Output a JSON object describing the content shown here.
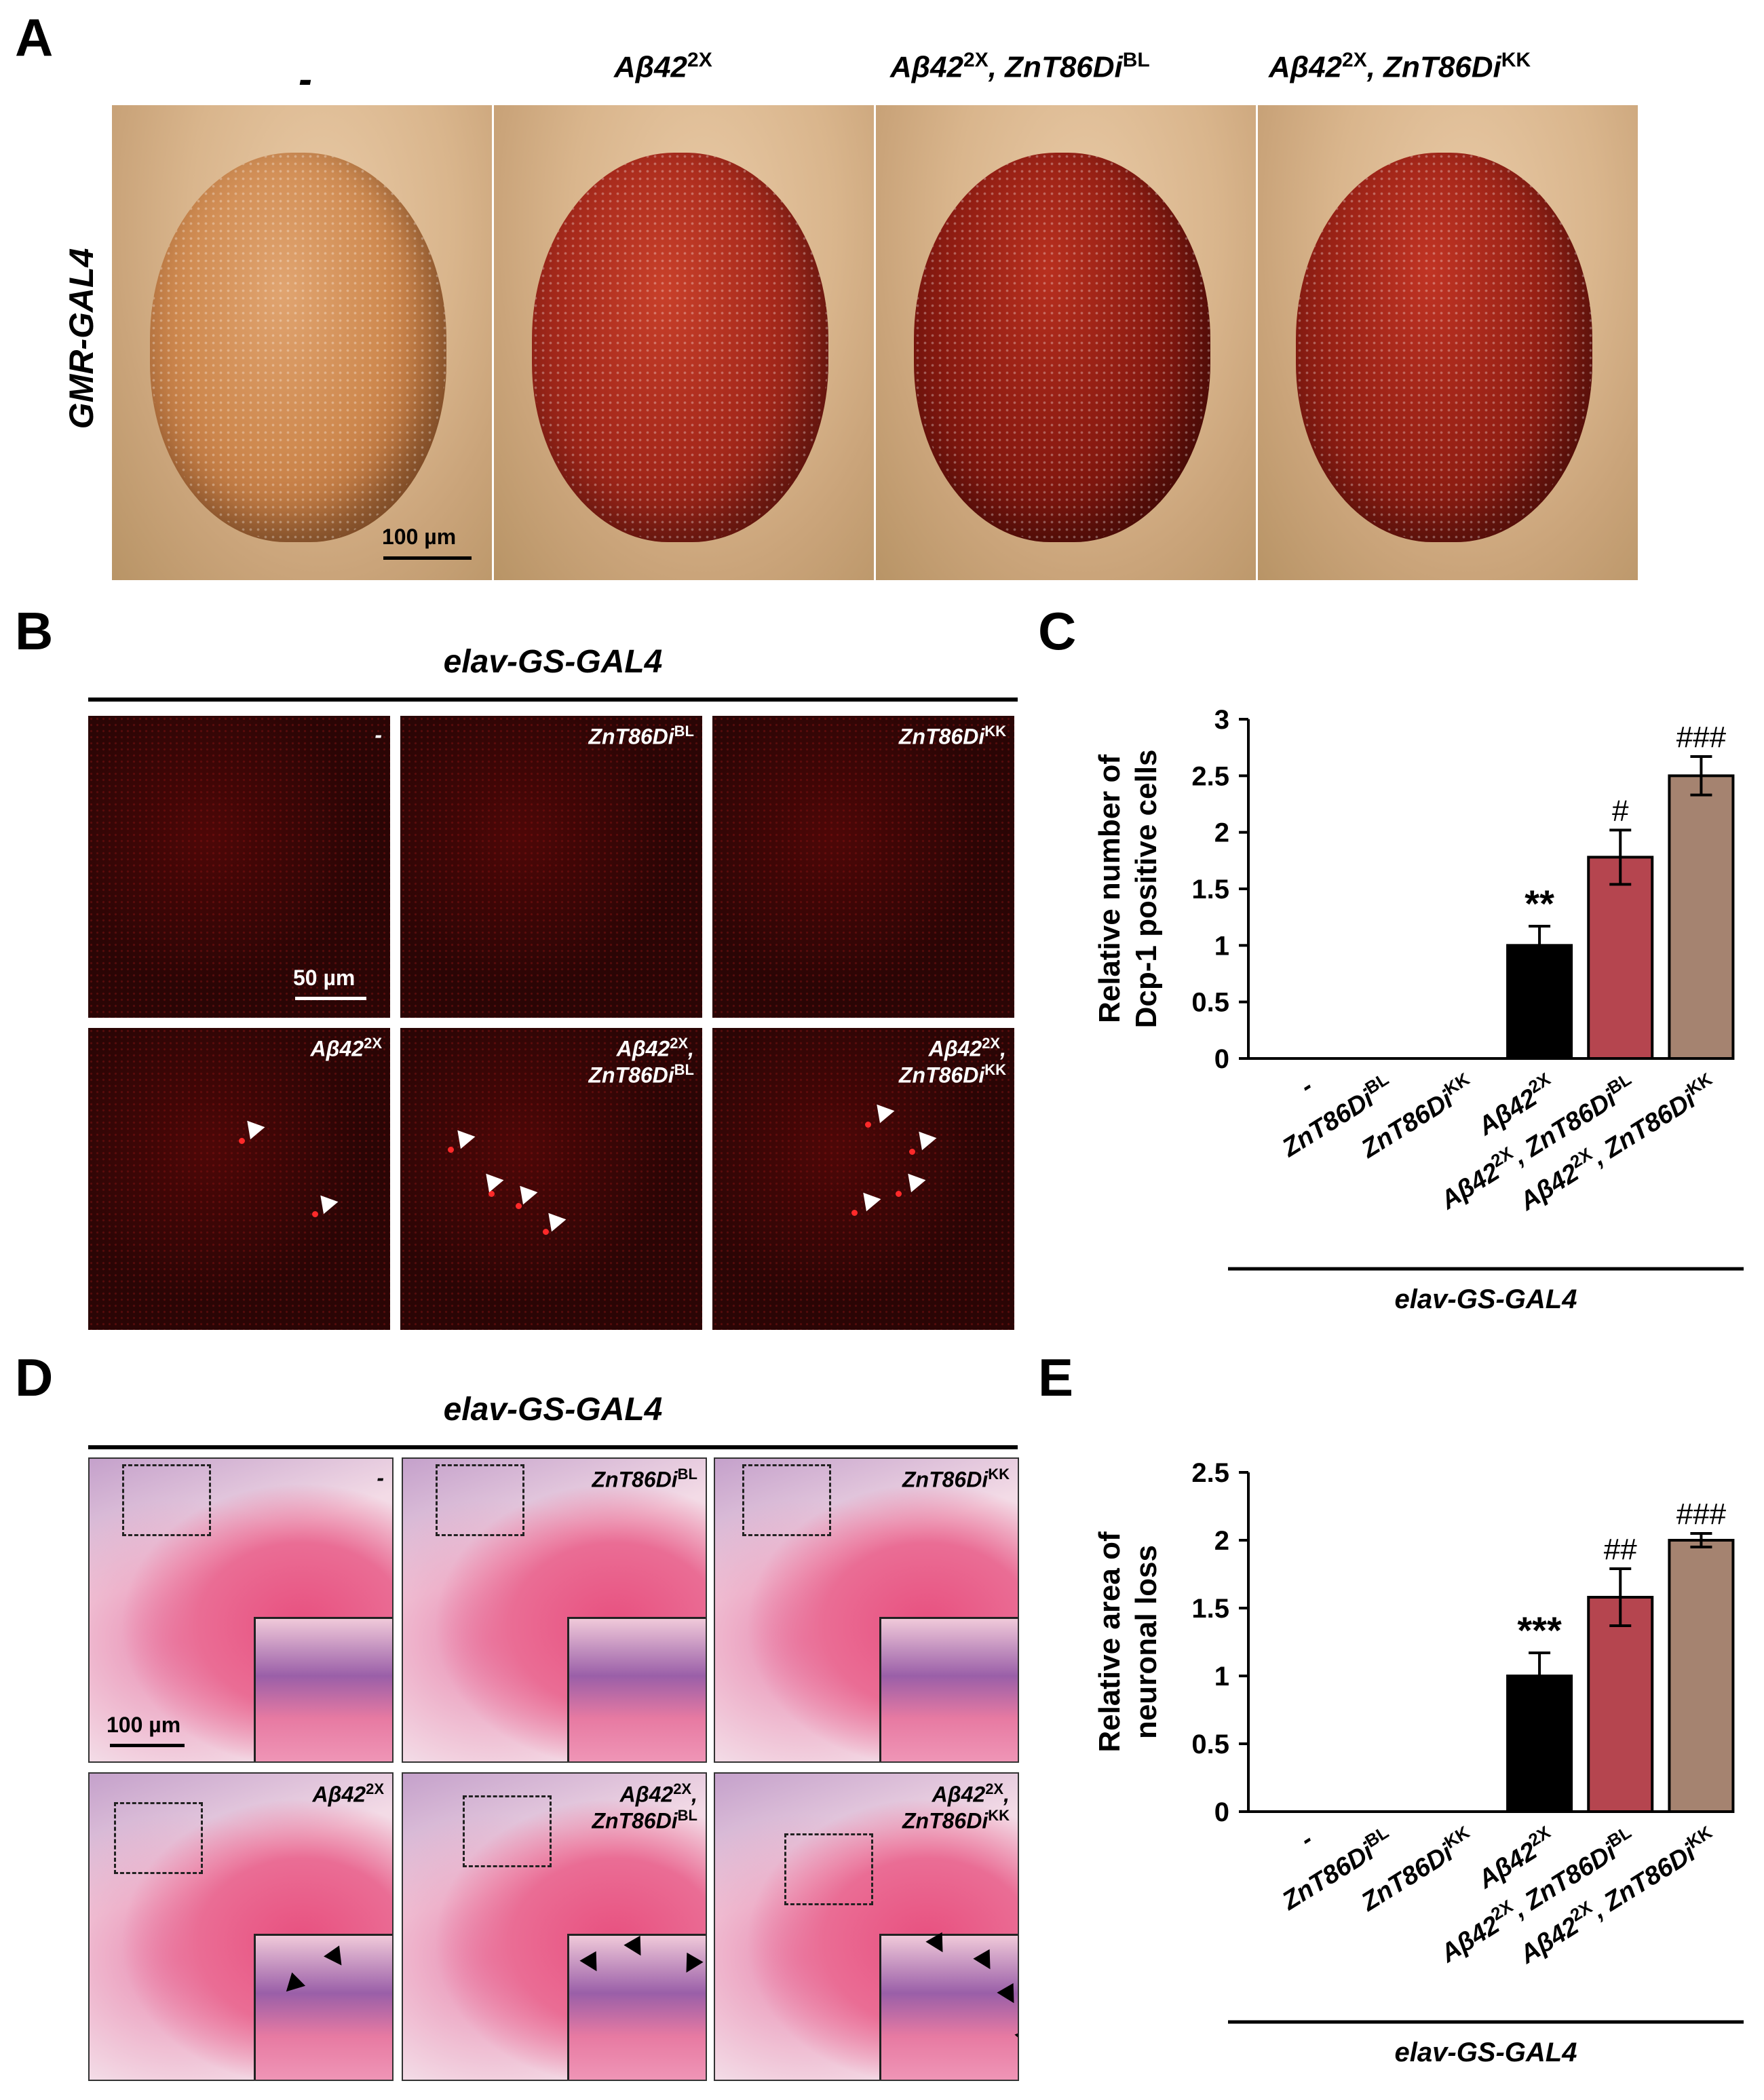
{
  "panels": {
    "A": "A",
    "B": "B",
    "C": "C",
    "D": "D",
    "E": "E"
  },
  "panelA": {
    "row_label": "GMR-GAL4",
    "columns": [
      {
        "base": "-",
        "sup": ""
      },
      {
        "base": "Aβ42",
        "sup": "2X"
      },
      {
        "base": "Aβ42",
        "sup": "2X",
        "base2": ", ZnT86Di",
        "sup2": "BL"
      },
      {
        "base": "Aβ42",
        "sup": "2X",
        "base2": ", ZnT86Di",
        "sup2": "KK"
      }
    ],
    "scale_bar": "100 µm"
  },
  "panelB": {
    "driver": "elav-GS-GAL4",
    "scale_bar": "50 µm",
    "tiles": [
      {
        "l1": "-",
        "s1": "",
        "l2": "",
        "s2": ""
      },
      {
        "l1": "ZnT86Di",
        "s1": "BL",
        "l2": "",
        "s2": ""
      },
      {
        "l1": "ZnT86Di",
        "s1": "KK",
        "l2": "",
        "s2": ""
      },
      {
        "l1": "Aβ42",
        "s1": "2X",
        "l2": "",
        "s2": ""
      },
      {
        "l1": "Aβ42",
        "s1": "2X",
        "l1b": ",",
        "l2": "ZnT86Di",
        "s2": "BL"
      },
      {
        "l1": "Aβ42",
        "s1": "2X",
        "l1b": ",",
        "l2": "ZnT86Di",
        "s2": "KK"
      }
    ]
  },
  "panelD": {
    "driver": "elav-GS-GAL4",
    "scale_bar": "100 µm",
    "tiles": [
      {
        "l1": "-",
        "s1": "",
        "l2": "",
        "s2": ""
      },
      {
        "l1": "ZnT86Di",
        "s1": "BL",
        "l2": "",
        "s2": ""
      },
      {
        "l1": "ZnT86Di",
        "s1": "KK",
        "l2": "",
        "s2": ""
      },
      {
        "l1": "Aβ42",
        "s1": "2X",
        "l2": "",
        "s2": ""
      },
      {
        "l1": "Aβ42",
        "s1": "2X",
        "l1b": ",",
        "l2": "ZnT86Di",
        "s2": "BL"
      },
      {
        "l1": "Aβ42",
        "s1": "2X",
        "l1b": ",",
        "l2": "ZnT86Di",
        "s2": "KK"
      }
    ]
  },
  "chart_data": [
    {
      "panel": "C",
      "type": "bar",
      "ylabel": [
        "Relative number of",
        "Dcp-1 positive cells"
      ],
      "ylim": [
        0,
        3
      ],
      "yticks": [
        "0",
        "0.5",
        "1",
        "1.5",
        "2",
        "2.5",
        "3"
      ],
      "categories": [
        "-",
        "ZnT86Di^BL",
        "ZnT86Di^KK",
        "Aβ42^2X",
        "Aβ42^2X, ZnT86Di^BL",
        "Aβ42^2X, ZnT86Di^KK"
      ],
      "category_labels": [
        [
          {
            "t": "-",
            "sup": false
          }
        ],
        [
          {
            "t": "ZnT86Di",
            "sup": false
          },
          {
            "t": "BL",
            "sup": true
          }
        ],
        [
          {
            "t": "ZnT86Di",
            "sup": false
          },
          {
            "t": "KK",
            "sup": true
          }
        ],
        [
          {
            "t": "Aβ42",
            "sup": false
          },
          {
            "t": "2X",
            "sup": true
          }
        ],
        [
          {
            "t": "Aβ42",
            "sup": false
          },
          {
            "t": "2X",
            "sup": true
          },
          {
            "t": ", ZnT86Di",
            "sup": false
          },
          {
            "t": "BL",
            "sup": true
          }
        ],
        [
          {
            "t": "Aβ42",
            "sup": false
          },
          {
            "t": "2X",
            "sup": true
          },
          {
            "t": ", ZnT86Di",
            "sup": false
          },
          {
            "t": "KK",
            "sup": true
          }
        ]
      ],
      "values": [
        0,
        0,
        0,
        1.0,
        1.78,
        2.5
      ],
      "errors": [
        0,
        0,
        0,
        0.17,
        0.24,
        0.17
      ],
      "colors": [
        "#000000",
        "#000000",
        "#000000",
        "#000000",
        "#b5454f",
        "#a58370"
      ],
      "annotations": [
        "",
        "",
        "",
        "**",
        "#",
        "###"
      ],
      "group_label": "elav-GS-GAL4"
    },
    {
      "panel": "E",
      "type": "bar",
      "ylabel": [
        "Relative area of",
        "neuronal loss"
      ],
      "ylim": [
        0,
        2.5
      ],
      "yticks": [
        "0",
        "0.5",
        "1",
        "1.5",
        "2",
        "2.5"
      ],
      "categories": [
        "-",
        "ZnT86Di^BL",
        "ZnT86Di^KK",
        "Aβ42^2X",
        "Aβ42^2X, ZnT86Di^BL",
        "Aβ42^2X, ZnT86Di^KK"
      ],
      "category_labels": [
        [
          {
            "t": "-",
            "sup": false
          }
        ],
        [
          {
            "t": "ZnT86Di",
            "sup": false
          },
          {
            "t": "BL",
            "sup": true
          }
        ],
        [
          {
            "t": "ZnT86Di",
            "sup": false
          },
          {
            "t": "KK",
            "sup": true
          }
        ],
        [
          {
            "t": "Aβ42",
            "sup": false
          },
          {
            "t": "2X",
            "sup": true
          }
        ],
        [
          {
            "t": "Aβ42",
            "sup": false
          },
          {
            "t": "2X",
            "sup": true
          },
          {
            "t": ", ZnT86Di",
            "sup": false
          },
          {
            "t": "BL",
            "sup": true
          }
        ],
        [
          {
            "t": "Aβ42",
            "sup": false
          },
          {
            "t": "2X",
            "sup": true
          },
          {
            "t": ", ZnT86Di",
            "sup": false
          },
          {
            "t": "KK",
            "sup": true
          }
        ]
      ],
      "values": [
        0,
        0,
        0,
        1.0,
        1.58,
        2.0
      ],
      "errors": [
        0,
        0,
        0,
        0.17,
        0.21,
        0.05
      ],
      "colors": [
        "#000000",
        "#000000",
        "#000000",
        "#000000",
        "#b5454f",
        "#a58370"
      ],
      "annotations": [
        "",
        "",
        "",
        "***",
        "##",
        "###"
      ],
      "group_label": "elav-GS-GAL4"
    }
  ]
}
